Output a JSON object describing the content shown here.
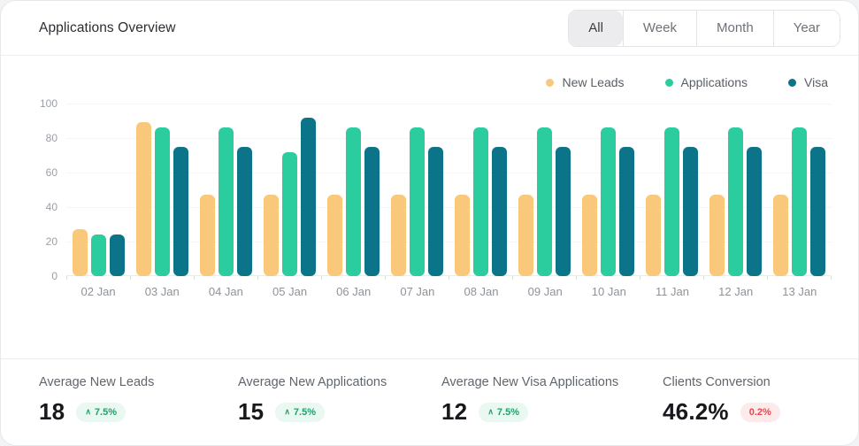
{
  "header": {
    "title": "Applications Overview",
    "tabs": [
      {
        "label": "All",
        "active": true
      },
      {
        "label": "Week",
        "active": false
      },
      {
        "label": "Month",
        "active": false
      },
      {
        "label": "Year",
        "active": false
      }
    ]
  },
  "legend": [
    {
      "label": "New Leads",
      "color": "#F9C87A"
    },
    {
      "label": "Applications",
      "color": "#2BCC9E"
    },
    {
      "label": "Visa",
      "color": "#0C7489"
    }
  ],
  "chart_data": {
    "type": "bar",
    "title": "Applications Overview",
    "categories": [
      "02 Jan",
      "03 Jan",
      "04 Jan",
      "05 Jan",
      "06 Jan",
      "07 Jan",
      "08 Jan",
      "09 Jan",
      "10 Jan",
      "11 Jan",
      "12 Jan",
      "13 Jan"
    ],
    "series": [
      {
        "name": "New Leads",
        "color": "#F9C87A",
        "values": [
          27,
          89,
          47,
          47,
          47,
          47,
          47,
          47,
          47,
          47,
          47,
          47
        ]
      },
      {
        "name": "Applications",
        "color": "#2BCC9E",
        "values": [
          24,
          86,
          86,
          72,
          86,
          86,
          86,
          86,
          86,
          86,
          86,
          86
        ]
      },
      {
        "name": "Visa",
        "color": "#0C7489",
        "values": [
          24,
          75,
          75,
          92,
          75,
          75,
          75,
          75,
          75,
          75,
          75,
          75
        ]
      }
    ],
    "xlabel": "",
    "ylabel": "",
    "ylim": [
      0,
      100
    ],
    "yticks": [
      0,
      20,
      40,
      60,
      80,
      100
    ],
    "grid": true,
    "legend_position": "top-right"
  },
  "stats": [
    {
      "label": "Average  New Leads",
      "value": "18",
      "change": "7.5%",
      "direction": "up"
    },
    {
      "label": "Average New Applications",
      "value": "15",
      "change": "7.5%",
      "direction": "up"
    },
    {
      "label": "Average New Visa Applications",
      "value": "12",
      "change": "7.5%",
      "direction": "up"
    },
    {
      "label": "Clients Conversion",
      "value": "46.2%",
      "change": "0.2%",
      "direction": "down"
    }
  ],
  "colors": {
    "pill_up_bg": "#e9f8f0",
    "pill_up_text": "#22a06b",
    "pill_down_bg": "#fdeaea",
    "pill_down_text": "#e5484d",
    "grid_line": "#f4f5f7",
    "axis_text": "#9aa0a8"
  }
}
